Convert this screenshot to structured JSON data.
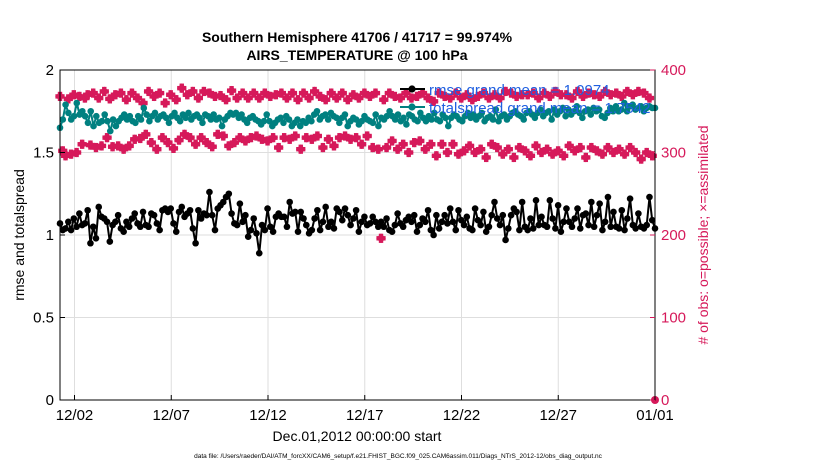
{
  "chart_data": {
    "type": "line",
    "title_line1": "Southern Hemisphere 41706 / 41717 = 99.974%",
    "title_line2": "AIRS_TEMPERATURE @ 100 hPa",
    "xlabel": "Dec.01,2012 00:00:00 start",
    "ylabel_left": "rmse and totalspread",
    "ylabel_right": "# of obs: o=possible; ×=assimilated",
    "footer": "data file: /Users/raeder/DAI/ATM_forcXX/CAM6_setup/f.e21.FHIST_BGC.f09_025.CAM6assim.011/Diags_NTrS_2012-12/obs_diag_output.nc",
    "x_tick_labels": [
      "12/02",
      "12/07",
      "12/12",
      "12/17",
      "12/22",
      "12/27",
      "01/01"
    ],
    "x_tick_days": [
      1,
      6,
      11,
      16,
      21,
      26,
      31
    ],
    "xlim_days": [
      0.25,
      31
    ],
    "ylim_left": [
      0,
      2
    ],
    "y_ticks_left": [
      "0",
      "0.5",
      "1",
      "1.5",
      "2"
    ],
    "ylim_right": [
      0,
      400
    ],
    "y_ticks_right": [
      "0",
      "100",
      "200",
      "300",
      "400"
    ],
    "grid": true,
    "colors": {
      "rmse": "#000000",
      "spread": "#008080",
      "obs": "#d6195a",
      "legend_text": "#1f5fe0",
      "grid": "#dedede"
    },
    "legend": [
      {
        "name": "rmse",
        "label": "rmse grand mean = 1.0974"
      },
      {
        "name": "totalspread",
        "label": "totalspread grand mean = 1.7542"
      }
    ],
    "series": [
      {
        "name": "rmse",
        "axis": "left",
        "values": [
          1.07,
          1.03,
          1.04,
          1.08,
          1.03,
          1.1,
          1.05,
          1.13,
          1.06,
          1.07,
          1.15,
          0.95,
          1.05,
          0.98,
          1.17,
          1.11,
          1.1,
          1.08,
          0.96,
          1.06,
          1.08,
          1.12,
          1.04,
          1.02,
          1.08,
          1.05,
          1.1,
          1.13,
          1.07,
          1.05,
          1.14,
          1.06,
          1.05,
          1.13,
          1.12,
          1.07,
          1.03,
          1.15,
          1.16,
          1.14,
          1.16,
          1.07,
          1.02,
          1.14,
          1.17,
          1.11,
          1.13,
          1.15,
          1.04,
          0.95,
          1.15,
          1.1,
          1.13,
          1.12,
          1.26,
          1.12,
          1.03,
          1.16,
          1.18,
          1.2,
          1.23,
          1.25,
          1.13,
          1.07,
          1.06,
          1.19,
          1.08,
          1.12,
          0.99,
          1.03,
          1.1,
          1.01,
          0.89,
          1.06,
          1.03,
          1.16,
          1.05,
          1.02,
          1.11,
          1.13,
          1.11,
          1.11,
          1.05,
          1.2,
          1.13,
          1.14,
          1.02,
          1.14,
          1.1,
          1.06,
          1.01,
          1.03,
          1.1,
          1.15,
          1.03,
          1.08,
          1.17,
          1.05,
          1.08,
          1.04,
          1.16,
          1.14,
          1.09,
          1.16,
          1.12,
          1.06,
          1.1,
          1.15,
          1.02,
          1.08,
          1.11,
          1.06,
          1.07,
          1.11,
          1.08,
          1.05,
          1.08,
          1.05,
          1.1,
          1.03,
          1.02,
          1.06,
          1.13,
          1.07,
          1.05,
          1.09,
          1.11,
          1.08,
          1.12,
          1.02,
          1.06,
          1.1,
          1.08,
          1.15,
          1.03,
          1.0,
          1.12,
          1.04,
          1.08,
          1.12,
          1.07,
          1.16,
          1.08,
          1.03,
          1.15,
          1.09,
          1.06,
          1.11,
          1.04,
          1.03,
          1.16,
          1.09,
          1.06,
          1.14,
          1.02,
          1.05,
          1.12,
          1.2,
          1.1,
          1.06,
          1.12,
          0.97,
          1.04,
          1.12,
          1.16,
          1.14,
          1.03,
          1.2,
          1.05,
          1.03,
          1.1,
          1.04,
          1.21,
          1.06,
          1.11,
          1.06,
          1.05,
          1.21,
          1.1,
          1.04,
          1.18,
          1.02,
          1.08,
          1.16,
          1.08,
          1.05,
          1.1,
          1.16,
          1.04,
          1.12,
          1.13,
          1.06,
          1.2,
          1.05,
          1.12,
          1.19,
          1.03,
          1.08,
          1.23,
          1.05,
          1.14,
          1.05,
          1.04,
          1.15,
          1.03,
          1.1,
          1.22,
          1.06,
          1.04,
          1.13,
          1.05,
          1.04,
          1.06,
          1.23,
          1.09,
          1.04
        ]
      },
      {
        "name": "totalspread",
        "axis": "left",
        "values": [
          1.65,
          1.7,
          1.79,
          1.74,
          1.7,
          1.72,
          1.8,
          1.73,
          1.75,
          1.72,
          1.68,
          1.75,
          1.66,
          1.72,
          1.68,
          1.69,
          1.73,
          1.69,
          1.63,
          1.7,
          1.66,
          1.69,
          1.71,
          1.73,
          1.7,
          1.72,
          1.69,
          1.68,
          1.72,
          1.7,
          1.77,
          1.73,
          1.69,
          1.72,
          1.74,
          1.7,
          1.72,
          1.73,
          1.71,
          1.68,
          1.72,
          1.74,
          1.71,
          1.69,
          1.73,
          1.71,
          1.74,
          1.7,
          1.72,
          1.73,
          1.71,
          1.68,
          1.73,
          1.72,
          1.7,
          1.73,
          1.7,
          1.71,
          1.66,
          1.7,
          1.72,
          1.74,
          1.73,
          1.74,
          1.71,
          1.73,
          1.7,
          1.68,
          1.71,
          1.72,
          1.7,
          1.69,
          1.67,
          1.69,
          1.73,
          1.69,
          1.66,
          1.68,
          1.7,
          1.71,
          1.68,
          1.72,
          1.7,
          1.66,
          1.68,
          1.7,
          1.66,
          1.69,
          1.68,
          1.71,
          1.69,
          1.73,
          1.75,
          1.7,
          1.72,
          1.73,
          1.7,
          1.74,
          1.72,
          1.71,
          1.68,
          1.71,
          1.73,
          1.66,
          1.69,
          1.71,
          1.7,
          1.67,
          1.69,
          1.72,
          1.7,
          1.69,
          1.68,
          1.73,
          1.66,
          1.71,
          1.7,
          1.72,
          1.75,
          1.72,
          1.7,
          1.73,
          1.69,
          1.71,
          1.67,
          1.73,
          1.72,
          1.7,
          1.69,
          1.74,
          1.71,
          1.69,
          1.72,
          1.7,
          1.74,
          1.7,
          1.69,
          1.73,
          1.71,
          1.66,
          1.71,
          1.73,
          1.72,
          1.7,
          1.69,
          1.72,
          1.74,
          1.71,
          1.73,
          1.7,
          1.72,
          1.74,
          1.69,
          1.71,
          1.72,
          1.7,
          1.76,
          1.69,
          1.72,
          1.73,
          1.7,
          1.72,
          1.74,
          1.75,
          1.73,
          1.72,
          1.7,
          1.74,
          1.75,
          1.73,
          1.71,
          1.74,
          1.76,
          1.72,
          1.74,
          1.75,
          1.7,
          1.76,
          1.73,
          1.75,
          1.77,
          1.72,
          1.76,
          1.73,
          1.75,
          1.78,
          1.74,
          1.71,
          1.75,
          1.76,
          1.73,
          1.77,
          1.75,
          1.76,
          1.72,
          1.71,
          1.74,
          1.77,
          1.75,
          1.78,
          1.75,
          1.76,
          1.8,
          1.75,
          1.78,
          1.79,
          1.76,
          1.77,
          1.78,
          1.75,
          1.77,
          1.78,
          1.77,
          1.77
        ]
      },
      {
        "name": "obs_possible_assimilated",
        "axis": "right",
        "marker": "star",
        "values": [
          368,
          302,
          296,
          365,
          298,
          370,
          300,
          368,
          310,
          366,
          370,
          309,
          372,
          306,
          366,
          308,
          374,
          318,
          365,
          307,
          370,
          308,
          372,
          304,
          364,
          308,
          372,
          316,
          366,
          317,
          360,
          322,
          374,
          312,
          368,
          304,
          372,
          318,
          360,
          312,
          370,
          305,
          364,
          315,
          378,
          322,
          370,
          318,
          374,
          310,
          366,
          318,
          374,
          312,
          372,
          307,
          368,
          322,
          369,
          320,
          364,
          308,
          375,
          312,
          366,
          318,
          372,
          314,
          366,
          318,
          372,
          320,
          366,
          316,
          372,
          314,
          368,
          318,
          370,
          306,
          372,
          318,
          366,
          316,
          372,
          320,
          364,
          304,
          372,
          318,
          366,
          316,
          374,
          320,
          368,
          306,
          364,
          316,
          372,
          308,
          366,
          318,
          372,
          320,
          364,
          316,
          370,
          318,
          366,
          310,
          372,
          320,
          368,
          306,
          372,
          304,
          196,
          364,
          306,
          372,
          314,
          368,
          304,
          366,
          310,
          372,
          300,
          366,
          312,
          368,
          314,
          372,
          304,
          366,
          310,
          362,
          296,
          372,
          310,
          368,
          300,
          366,
          310,
          372,
          298,
          366,
          302,
          370,
          308,
          364,
          300,
          368,
          304,
          372,
          294,
          366,
          310,
          370,
          306,
          366,
          298,
          374,
          304,
          372,
          294,
          368,
          306,
          370,
          302,
          370,
          296,
          372,
          308,
          366,
          300,
          372,
          304,
          368,
          298,
          374,
          302,
          370,
          296,
          370,
          308,
          366,
          302,
          374,
          306,
          368,
          294,
          372,
          306,
          370,
          302,
          368,
          298,
          374,
          306,
          370,
          300,
          372,
          304,
          368,
          298,
          374,
          306,
          370,
          300,
          374,
          292,
          372,
          300,
          366,
          296,
          0
        ]
      }
    ]
  }
}
